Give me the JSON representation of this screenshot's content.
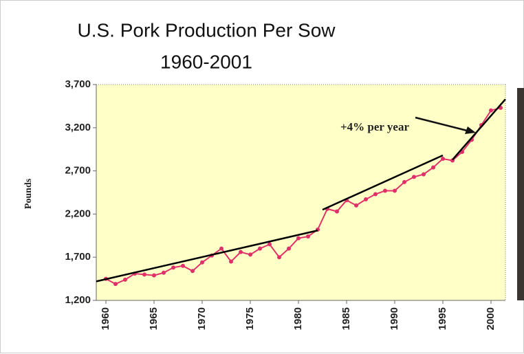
{
  "chart_data": {
    "type": "line",
    "title": [
      "U.S. Pork Production Per Sow",
      "1960-2001"
    ],
    "y_label": "Pounds",
    "annotation": "+4% per year",
    "x": [
      1960,
      1961,
      1962,
      1963,
      1964,
      1965,
      1966,
      1967,
      1968,
      1969,
      1970,
      1971,
      1972,
      1973,
      1974,
      1975,
      1976,
      1977,
      1978,
      1979,
      1980,
      1981,
      1982,
      1983,
      1984,
      1985,
      1986,
      1987,
      1988,
      1989,
      1990,
      1991,
      1992,
      1993,
      1994,
      1995,
      1996,
      1997,
      1998,
      1999,
      2000,
      2001
    ],
    "series": [
      {
        "color": "#e0306a",
        "values": [
          1450,
          1390,
          1440,
          1510,
          1500,
          1490,
          1520,
          1580,
          1600,
          1540,
          1640,
          1720,
          1800,
          1650,
          1760,
          1730,
          1800,
          1850,
          1700,
          1800,
          1920,
          1940,
          2020,
          2260,
          2230,
          2360,
          2300,
          2370,
          2430,
          2470,
          2470,
          2570,
          2630,
          2660,
          2740,
          2840,
          2820,
          2920,
          3060,
          3230,
          3400,
          3430
        ]
      }
    ],
    "trend_lines": [
      {
        "color": "#000000",
        "x": [
          1959,
          1982
        ],
        "values": [
          1420,
          2010
        ]
      },
      {
        "color": "#000000",
        "x": [
          1982.5,
          1995
        ],
        "values": [
          2250,
          2880
        ]
      },
      {
        "color": "#000000",
        "x": [
          1996,
          2001.5
        ],
        "values": [
          2830,
          3530
        ]
      }
    ],
    "xlim": [
      1959,
      2001.5
    ],
    "ylim": [
      1200,
      3700
    ],
    "xticks": [
      1960,
      1965,
      1970,
      1975,
      1980,
      1985,
      1990,
      1995,
      2000
    ],
    "yticks": [
      {
        "value": 1200,
        "label": "1,200"
      },
      {
        "value": 1700,
        "label": "1,700"
      },
      {
        "value": 2200,
        "label": "2,200"
      },
      {
        "value": 2700,
        "label": "2,700"
      },
      {
        "value": 3200,
        "label": "3,200"
      },
      {
        "value": 3700,
        "label": "3,700"
      }
    ],
    "background": "#ffffc8"
  }
}
